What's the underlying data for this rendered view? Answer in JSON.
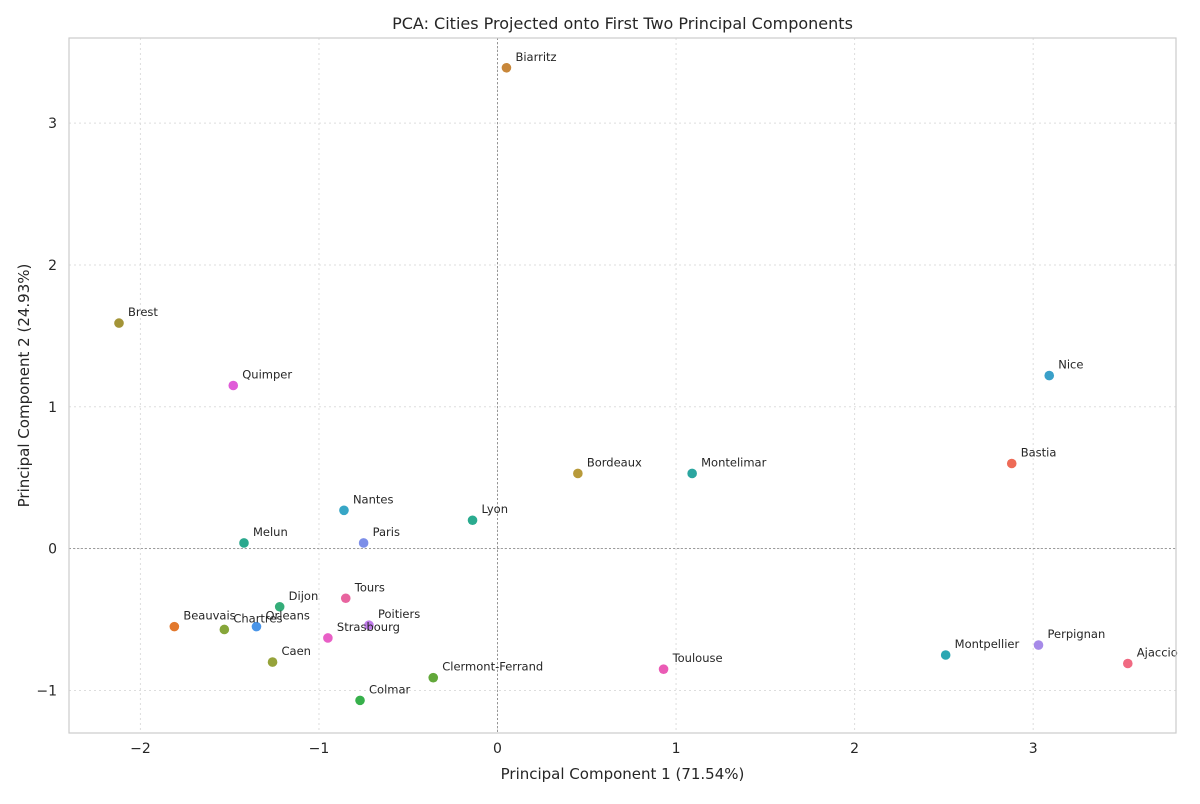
{
  "chart_data": {
    "type": "scatter",
    "title": "PCA: Cities Projected onto First Two Principal Components",
    "xlabel": "Principal Component 1 (71.54%)",
    "ylabel": "Principal Component 2 (24.93%)",
    "xlim": [
      -2.4,
      3.8
    ],
    "ylim": [
      -1.3,
      3.6
    ],
    "xticks": [
      -2,
      -1,
      0,
      1,
      2,
      3
    ],
    "yticks": [
      -1,
      0,
      1,
      2,
      3
    ],
    "xtick_labels": [
      "−2",
      "−1",
      "0",
      "1",
      "2",
      "3"
    ],
    "ytick_labels": [
      "−1",
      "0",
      "1",
      "2",
      "3"
    ],
    "grid": true,
    "reference_lines": {
      "x": 0,
      "y": 0
    },
    "points": [
      {
        "label": "Biarritz",
        "x": 0.05,
        "y": 3.39,
        "color": "#c8873a"
      },
      {
        "label": "Brest",
        "x": -2.12,
        "y": 1.59,
        "color": "#a39437"
      },
      {
        "label": "Quimper",
        "x": -1.48,
        "y": 1.15,
        "color": "#e05bd8"
      },
      {
        "label": "Nice",
        "x": 3.09,
        "y": 1.22,
        "color": "#3aa0c9"
      },
      {
        "label": "Bastia",
        "x": 2.88,
        "y": 0.6,
        "color": "#ee6b57"
      },
      {
        "label": "Bordeaux",
        "x": 0.45,
        "y": 0.53,
        "color": "#b89a3a"
      },
      {
        "label": "Montelimar",
        "x": 1.09,
        "y": 0.53,
        "color": "#2ba6a0"
      },
      {
        "label": "Lyon",
        "x": -0.14,
        "y": 0.2,
        "color": "#2aab8f"
      },
      {
        "label": "Nantes",
        "x": -0.86,
        "y": 0.27,
        "color": "#37a6c6"
      },
      {
        "label": "Paris",
        "x": -0.75,
        "y": 0.04,
        "color": "#7c8ee8"
      },
      {
        "label": "Melun",
        "x": -1.42,
        "y": 0.04,
        "color": "#2ba88d"
      },
      {
        "label": "Tours",
        "x": -0.85,
        "y": -0.35,
        "color": "#e8649f"
      },
      {
        "label": "Dijon",
        "x": -1.22,
        "y": -0.41,
        "color": "#34ad79"
      },
      {
        "label": "Poitiers",
        "x": -0.72,
        "y": -0.54,
        "color": "#c07be9"
      },
      {
        "label": "Strasbourg",
        "x": -0.95,
        "y": -0.63,
        "color": "#e85fc6"
      },
      {
        "label": "Orleans",
        "x": -1.35,
        "y": -0.55,
        "color": "#4a95e8"
      },
      {
        "label": "Chartres",
        "x": -1.53,
        "y": -0.57,
        "color": "#86a63a"
      },
      {
        "label": "Beauvais",
        "x": -1.81,
        "y": -0.55,
        "color": "#e2782d"
      },
      {
        "label": "Caen",
        "x": -1.26,
        "y": -0.8,
        "color": "#96a33a"
      },
      {
        "label": "Clermont-Ferrand",
        "x": -0.36,
        "y": -0.91,
        "color": "#62a83a"
      },
      {
        "label": "Colmar",
        "x": -0.77,
        "y": -1.07,
        "color": "#37b04b"
      },
      {
        "label": "Toulouse",
        "x": 0.93,
        "y": -0.85,
        "color": "#ea5bb5"
      },
      {
        "label": "Montpellier",
        "x": 2.51,
        "y": -0.75,
        "color": "#2aa7b2"
      },
      {
        "label": "Perpignan",
        "x": 3.03,
        "y": -0.68,
        "color": "#a68ae8"
      },
      {
        "label": "Ajaccio",
        "x": 3.53,
        "y": -0.81,
        "color": "#f06a82"
      }
    ]
  }
}
